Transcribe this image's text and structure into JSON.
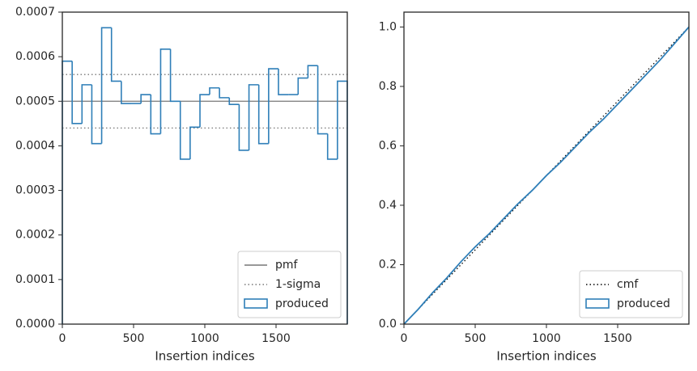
{
  "chart_data": [
    {
      "type": "histogram",
      "xlabel": "Insertion indices",
      "bins": [
        0,
        69,
        138,
        207,
        276,
        345,
        414,
        483,
        552,
        621,
        690,
        759,
        828,
        897,
        966,
        1034,
        1103,
        1172,
        1241,
        1310,
        1379,
        1448,
        1517,
        1586,
        1655,
        1724,
        1793,
        1862,
        1931,
        2000
      ],
      "series": [
        {
          "name": "produced",
          "color": "#2f7fb8",
          "values": [
            0.00059,
            0.00045,
            0.000537,
            0.000405,
            0.000665,
            0.000545,
            0.000495,
            0.000495,
            0.000515,
            0.000427,
            0.000617,
            0.0005,
            0.00037,
            0.000442,
            0.000515,
            0.00053,
            0.000508,
            0.000493,
            0.00039,
            0.000537,
            0.000405,
            0.000573,
            0.000515,
            0.000515,
            0.000552,
            0.00058,
            0.000427,
            0.00037,
            0.000545
          ]
        }
      ],
      "lines": [
        {
          "name": "pmf",
          "values": [
            0.0005
          ],
          "color": "#777777",
          "style": "solid"
        },
        {
          "name": "1-sigma",
          "values": [
            0.00044,
            0.00056
          ],
          "color": "#777777",
          "style": "dotted"
        }
      ],
      "xlim": [
        0,
        2000
      ],
      "xticks": [
        0,
        500,
        1000,
        1500
      ],
      "ylim": [
        0,
        0.0007
      ],
      "yticks": [
        {
          "value": 0,
          "label": "0.0000"
        },
        {
          "value": 0.0001,
          "label": "0.0001"
        },
        {
          "value": 0.0002,
          "label": "0.0002"
        },
        {
          "value": 0.0003,
          "label": "0.0003"
        },
        {
          "value": 0.0004,
          "label": "0.0004"
        },
        {
          "value": 0.0005,
          "label": "0.0005"
        },
        {
          "value": 0.0006,
          "label": "0.0006"
        },
        {
          "value": 0.0007,
          "label": "0.0007"
        }
      ],
      "legend": "lower right"
    },
    {
      "type": "line",
      "xlabel": "Insertion indices",
      "series": [
        {
          "name": "cmf",
          "color": "#000000",
          "style": "dotted",
          "x": [
            0,
            2000
          ],
          "values": [
            0,
            1
          ]
        },
        {
          "name": "produced",
          "color": "#2f7fb8",
          "style": "step",
          "x": [
            0,
            100,
            200,
            300,
            400,
            500,
            600,
            700,
            800,
            900,
            1000,
            1100,
            1200,
            1300,
            1400,
            1500,
            1600,
            1700,
            1800,
            1900,
            2000
          ],
          "values": [
            0,
            0.05,
            0.105,
            0.155,
            0.21,
            0.26,
            0.305,
            0.355,
            0.405,
            0.45,
            0.5,
            0.545,
            0.595,
            0.645,
            0.69,
            0.74,
            0.79,
            0.84,
            0.89,
            0.945,
            1.0
          ]
        }
      ],
      "xlim": [
        0,
        2000
      ],
      "xticks": [
        0,
        500,
        1000,
        1500
      ],
      "ylim": [
        0,
        1.05
      ],
      "yticks": [
        {
          "value": 0,
          "label": "0.0"
        },
        {
          "value": 0.2,
          "label": "0.2"
        },
        {
          "value": 0.4,
          "label": "0.4"
        },
        {
          "value": 0.6,
          "label": "0.6"
        },
        {
          "value": 0.8,
          "label": "0.8"
        },
        {
          "value": 1.0,
          "label": "1.0"
        }
      ],
      "legend": "lower right"
    }
  ]
}
